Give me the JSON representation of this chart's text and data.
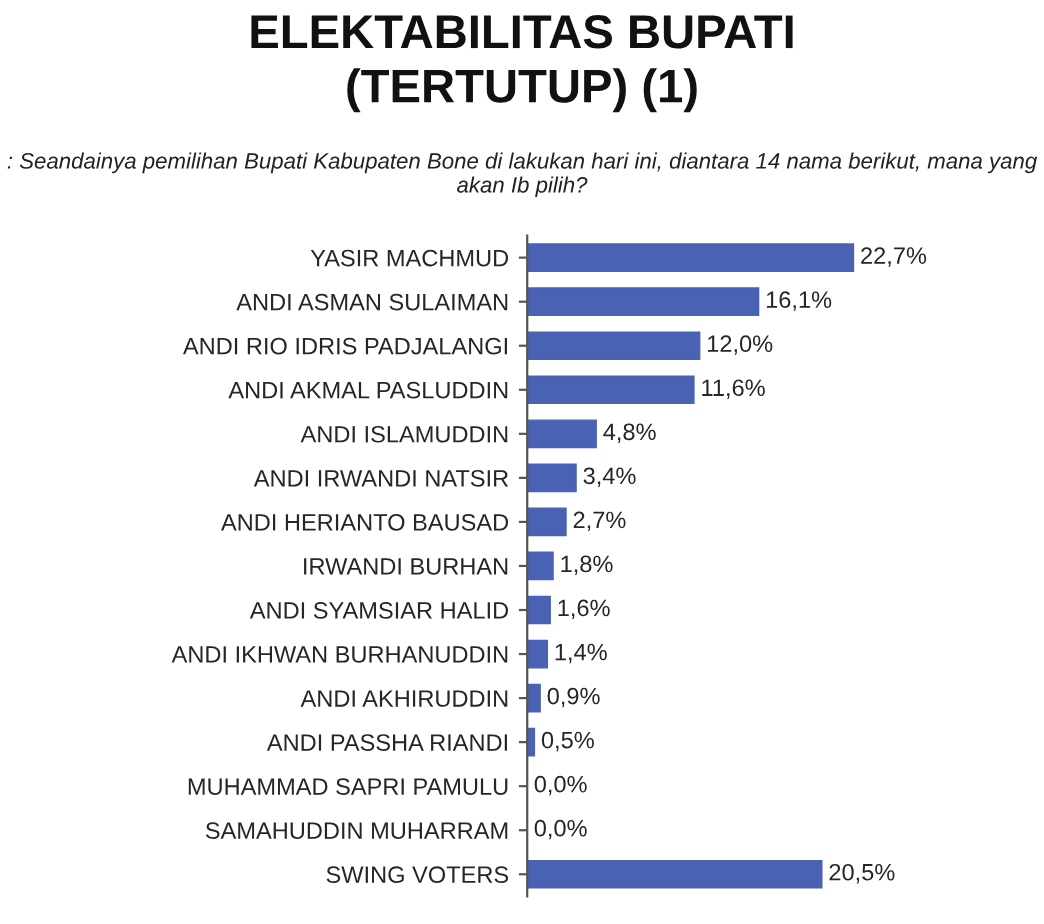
{
  "chart_data": {
    "type": "bar",
    "orientation": "horizontal",
    "title": "ELEKTABILITAS BUPATI\n(TERTUTUP) (1)",
    "subtitle": ": Seandainya pemilihan Bupati Kabupaten Bone di lakukan hari ini, diantara 14 nama berikut, mana yang akan Ib pilih?",
    "categories": [
      "YASIR MACHMUD",
      "ANDI ASMAN SULAIMAN",
      "ANDI RIO IDRIS PADJALANGI",
      "ANDI AKMAL PASLUDDIN",
      "ANDI ISLAMUDDIN",
      "ANDI IRWANDI NATSIR",
      "ANDI HERIANTO BAUSAD",
      "IRWANDI BURHAN",
      "ANDI SYAMSIAR HALID",
      "ANDI IKHWAN BURHANUDDIN",
      "ANDI AKHIRUDDIN",
      "ANDI PASSHA RIANDI",
      "MUHAMMAD SAPRI PAMULU",
      "SAMAHUDDIN MUHARRAM",
      "SWING VOTERS"
    ],
    "values": [
      22.7,
      16.1,
      12.0,
      11.6,
      4.8,
      3.4,
      2.7,
      1.8,
      1.6,
      1.4,
      0.9,
      0.5,
      0.0,
      0.0,
      20.5
    ],
    "value_labels": [
      "22,7%",
      "16,1%",
      "12,0%",
      "11,6%",
      "4,8%",
      "3,4%",
      "2,7%",
      "1,8%",
      "1,6%",
      "1,4%",
      "0,9%",
      "0,5%",
      "0,0%",
      "0,0%",
      "20,5%"
    ],
    "color": "#4a62b3",
    "grid": false,
    "legend": false,
    "tick_labels": "y"
  }
}
